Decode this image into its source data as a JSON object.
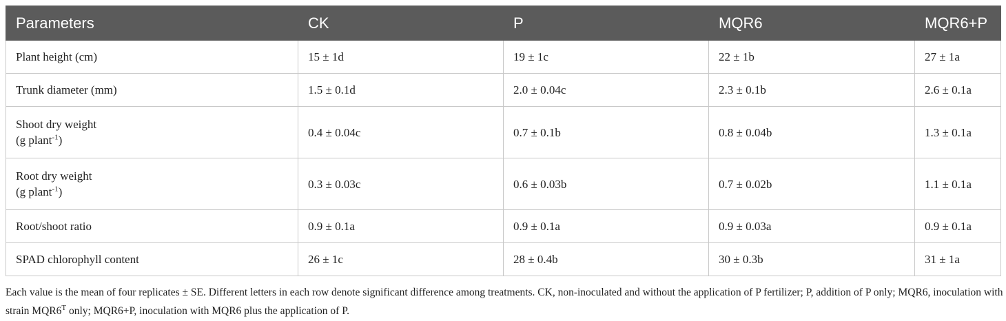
{
  "table": {
    "header": [
      "Parameters",
      "CK",
      "P",
      "MQR6",
      "MQR6+P"
    ],
    "rows": [
      [
        {
          "text": "Plant height (cm)"
        },
        "15 ± 1d",
        "19 ± 1c",
        "22 ± 1b",
        "27 ± 1a"
      ],
      [
        {
          "text": "Trunk diameter (mm)"
        },
        "1.5 ± 0.1d",
        "2.0 ± 0.04c",
        "2.3 ± 0.1b",
        "2.6 ± 0.1a"
      ],
      [
        {
          "text": "Shoot dry weight",
          "unit": "(g plant",
          "sup": "-1",
          "unit_end": ")"
        },
        "0.4 ± 0.04c",
        "0.7 ± 0.1b",
        "0.8 ± 0.04b",
        "1.3 ± 0.1a"
      ],
      [
        {
          "text": "Root dry weight",
          "unit": "(g plant",
          "sup": "-1",
          "unit_end": ")"
        },
        "0.3 ± 0.03c",
        "0.6 ± 0.03b",
        "0.7 ± 0.02b",
        "1.1 ± 0.1a"
      ],
      [
        {
          "text": "Root/shoot ratio"
        },
        "0.9 ± 0.1a",
        "0.9 ± 0.1a",
        "0.9 ± 0.03a",
        "0.9 ± 0.1a"
      ],
      [
        {
          "text": "SPAD chlorophyll content"
        },
        "26 ± 1c",
        "28 ± 0.4b",
        "30 ± 0.3b",
        "31 ± 1a"
      ]
    ]
  },
  "footnote": {
    "before": "Each value is the mean of four replicates ± SE. Different letters in each row denote significant difference among treatments. CK, non-inoculated and without the application of P fertilizer; P, addition of P only; MQR6, inoculation with strain MQR6",
    "sup": "T",
    "after": " only; MQR6+P, inoculation with MQR6 plus the application of P."
  }
}
